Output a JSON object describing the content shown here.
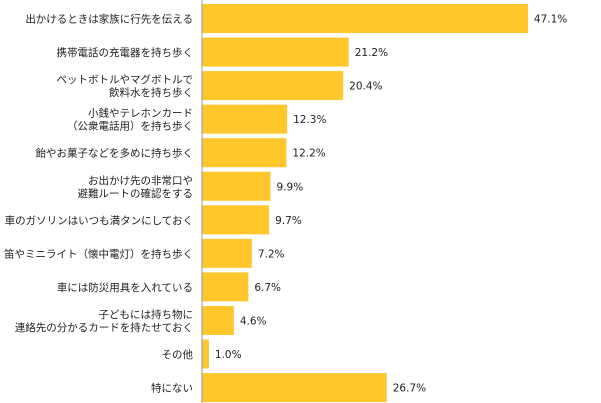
{
  "chart_data": {
    "type": "bar",
    "orientation": "horizontal",
    "categories": [
      [
        "出かけるときは家族に行先を伝える"
      ],
      [
        "携帯電話の充電器を持ち歩く"
      ],
      [
        "ペットボトルやマグボトルで",
        "飲料水を持ち歩く"
      ],
      [
        "小銭やテレホンカード",
        "（公衆電話用）を持ち歩く"
      ],
      [
        "飴やお菓子などを多めに持ち歩く"
      ],
      [
        "お出かけ先の非常口や",
        "避難ルートの確認をする"
      ],
      [
        "車のガソリンはいつも満タンにしておく"
      ],
      [
        "笛やミニライト（懐中電灯）を持ち歩く"
      ],
      [
        "車には防災用具を入れている"
      ],
      [
        "子どもには持ち物に",
        "連絡先の分かるカードを持たせておく"
      ],
      [
        "その他"
      ],
      [
        "特にない"
      ]
    ],
    "values": [
      47.1,
      21.2,
      20.4,
      12.3,
      12.2,
      9.9,
      9.7,
      7.2,
      6.7,
      4.6,
      1.0,
      26.7
    ],
    "value_labels": [
      "47.1%",
      "21.2%",
      "20.4%",
      "12.3%",
      "12.2%",
      "9.9%",
      "9.7%",
      "7.2%",
      "6.7%",
      "4.6%",
      "1.0%",
      "26.7%"
    ],
    "xlim": [
      0,
      50
    ],
    "grid": false,
    "legend": "none",
    "bar_color": "#FFC72C",
    "axis_color": "#999999"
  }
}
